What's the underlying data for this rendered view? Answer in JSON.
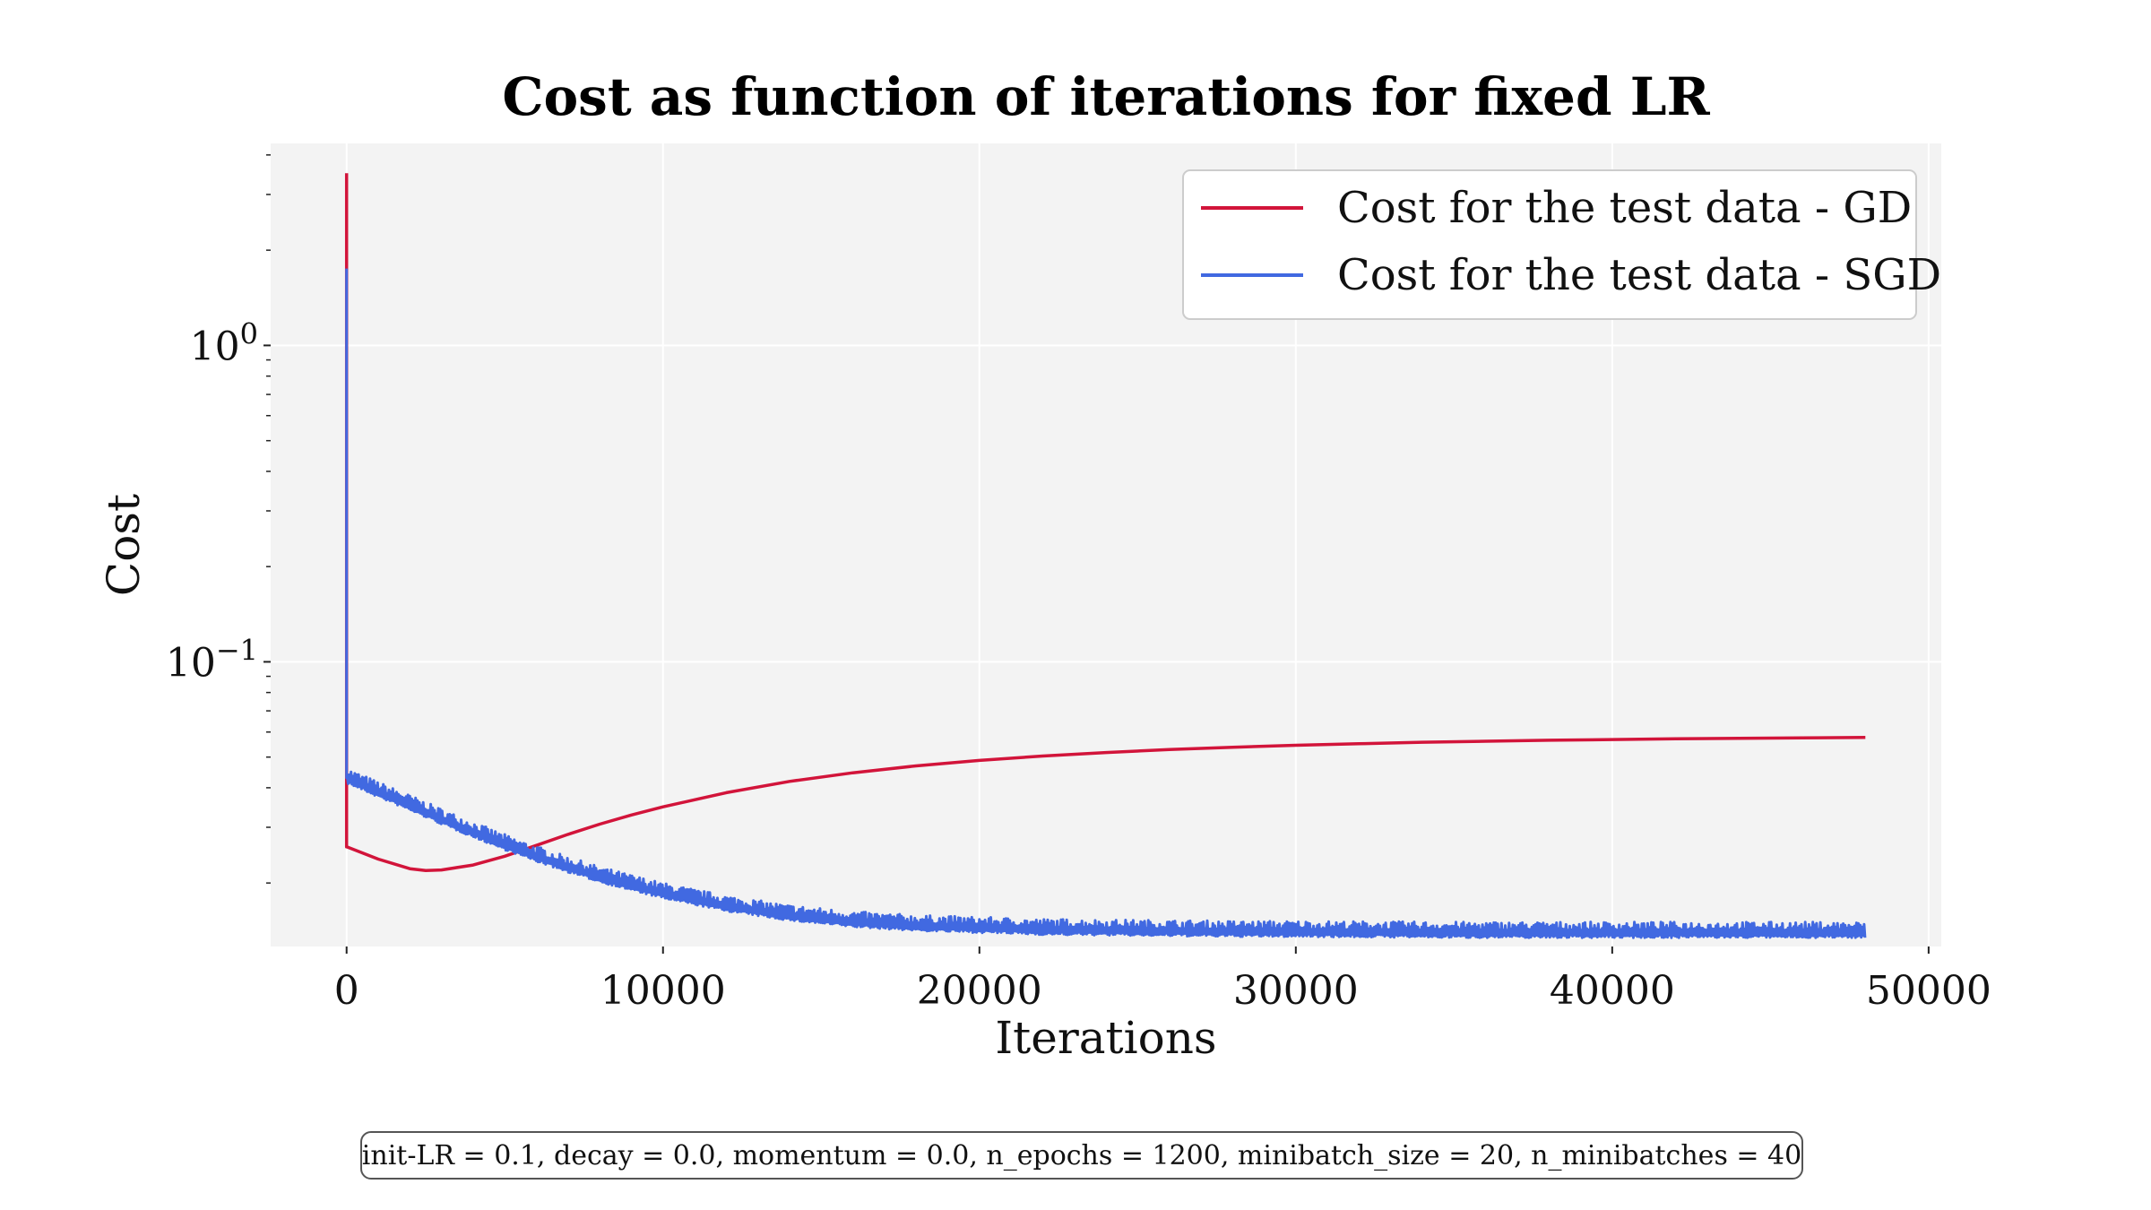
{
  "chart_data": {
    "type": "line",
    "title": "Cost as function of iterations for fixed LR",
    "xlabel": "Iterations",
    "ylabel": "Cost",
    "xlim": [
      -2400,
      50400
    ],
    "ylim": [
      0.0126,
      4.35
    ],
    "yscale": "log",
    "grid": true,
    "legend_position": "top-right",
    "x_ticks": [
      {
        "value": 0,
        "label": "0"
      },
      {
        "value": 10000,
        "label": "10000"
      },
      {
        "value": 20000,
        "label": "20000"
      },
      {
        "value": 30000,
        "label": "30000"
      },
      {
        "value": 40000,
        "label": "40000"
      },
      {
        "value": 50000,
        "label": "50000"
      }
    ],
    "y_ticks": [
      {
        "value": 1,
        "base": "10",
        "exp": "0"
      },
      {
        "value": 0.1,
        "base": "10",
        "exp": "−1"
      }
    ],
    "series": [
      {
        "name": "Cost for the test data - GD",
        "color": "#d2143a",
        "x": [
          0,
          0,
          10,
          1000,
          2000,
          2500,
          3000,
          4000,
          5000,
          6000,
          7000,
          8000,
          9000,
          10000,
          12000,
          14000,
          16000,
          18000,
          20000,
          22000,
          24000,
          26000,
          28000,
          30000,
          32000,
          34000,
          36000,
          38000,
          40000,
          42000,
          44000,
          46000,
          48000
        ],
        "y": [
          3.5,
          0.026,
          0.026,
          0.0238,
          0.0222,
          0.0219,
          0.022,
          0.0228,
          0.0243,
          0.0263,
          0.0285,
          0.0307,
          0.0328,
          0.0348,
          0.0386,
          0.0419,
          0.0446,
          0.0469,
          0.0488,
          0.0504,
          0.0517,
          0.0528,
          0.0537,
          0.0545,
          0.0551,
          0.0557,
          0.0561,
          0.0565,
          0.0568,
          0.0571,
          0.0573,
          0.0575,
          0.0577
        ]
      },
      {
        "name": "Cost for the test data - SGD",
        "color": "#4169e1",
        "x": [
          0,
          0,
          10,
          500,
          1000,
          2000,
          3000,
          4000,
          5000,
          6000,
          7000,
          8000,
          9000,
          10000,
          12000,
          14000,
          16000,
          18000,
          20000,
          22000,
          25000,
          28000,
          30000,
          35000,
          40000,
          45000,
          48000
        ],
        "y": [
          1.75,
          0.043,
          0.042,
          0.04,
          0.038,
          0.0345,
          0.0312,
          0.0284,
          0.0259,
          0.0238,
          0.022,
          0.0205,
          0.0193,
          0.0182,
          0.0166,
          0.0155,
          0.0148,
          0.0144,
          0.0142,
          0.014,
          0.0139,
          0.0138,
          0.0138,
          0.0137,
          0.0137,
          0.0137,
          0.0137
        ],
        "noise_upper_factor": 1.1
      }
    ],
    "annotation": "init-LR = 0.1, decay = 0.0, momentum = 0.0, n_epochs = 1200, minibatch_size = 20, n_minibatches = 40"
  }
}
